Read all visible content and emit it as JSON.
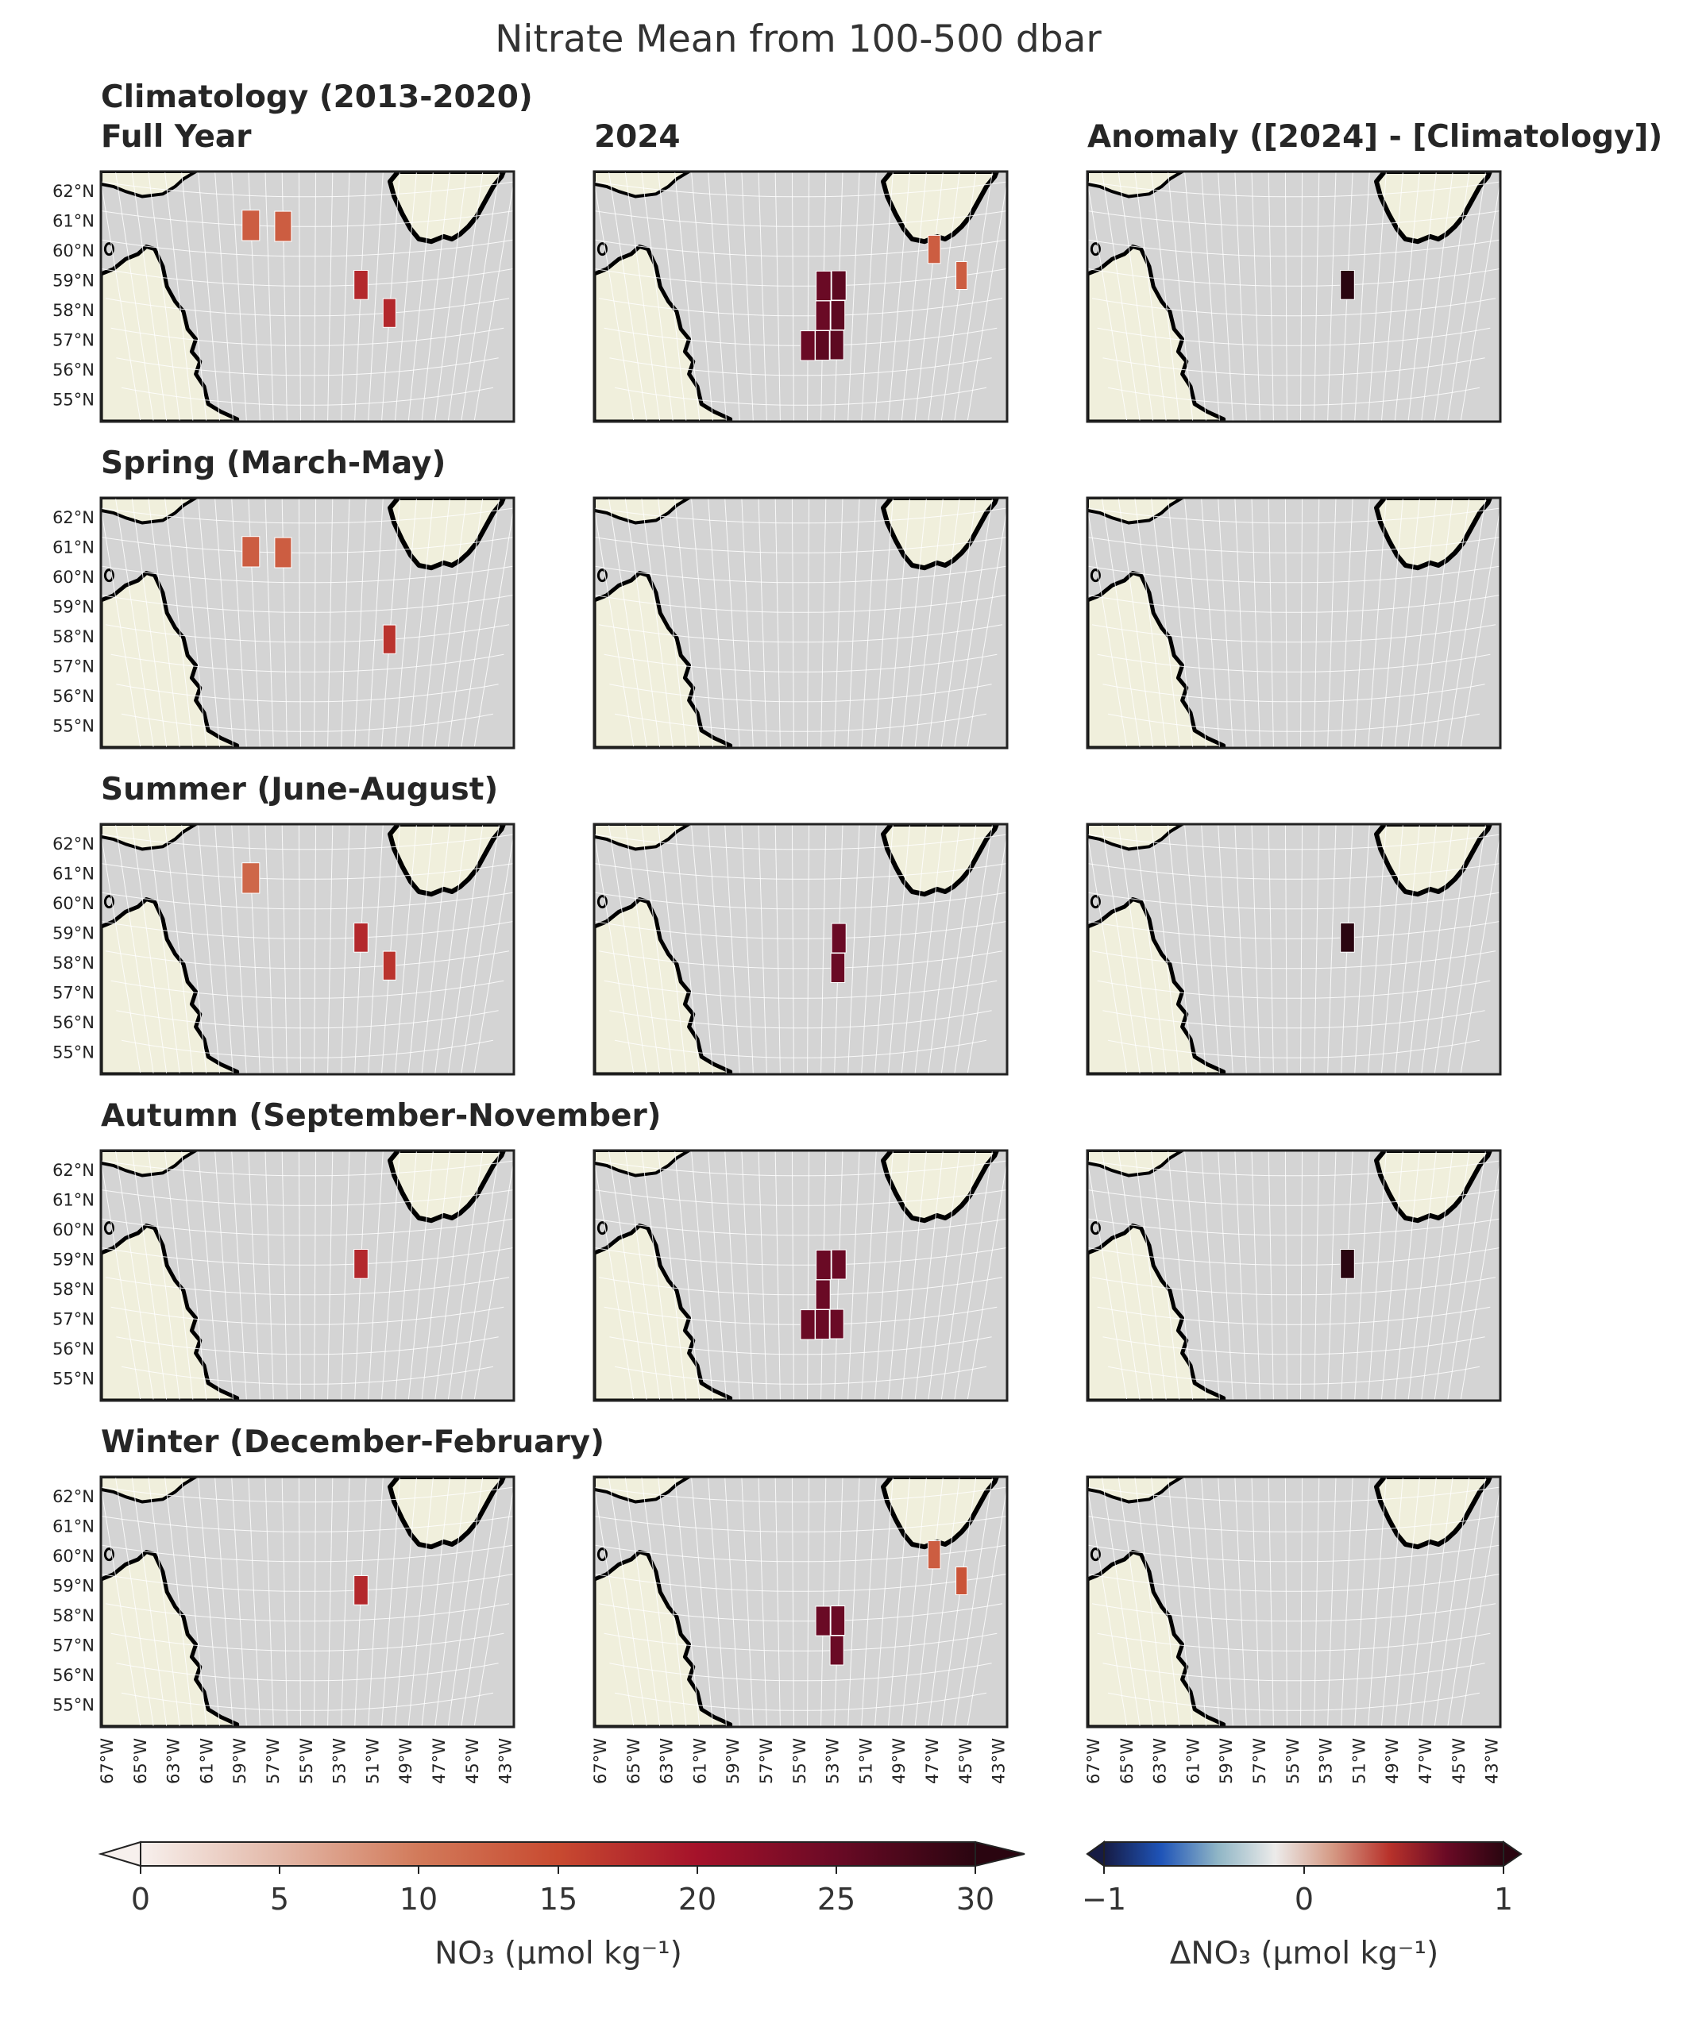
{
  "title": "Nitrate Mean from 100-500 dbar",
  "column_titles": {
    "climatology": "Climatology (2013-2020)",
    "year": "2024",
    "anomaly": "Anomaly ([2024] - [Climatology])"
  },
  "season_titles": [
    "Full Year",
    "Spring (March-May)",
    "Summer (June-August)",
    "Autumn (September-November)",
    "Winter (December-February)"
  ],
  "lat_ticks": [
    "62°N",
    "61°N",
    "60°N",
    "59°N",
    "58°N",
    "57°N",
    "56°N",
    "55°N"
  ],
  "lon_ticks": [
    "67°W",
    "65°W",
    "63°W",
    "61°W",
    "59°W",
    "57°W",
    "55°W",
    "53°W",
    "51°W",
    "49°W",
    "47°W",
    "45°W",
    "43°W"
  ],
  "colorbars": {
    "no3": {
      "ticks": [
        "0",
        "5",
        "10",
        "15",
        "20",
        "25",
        "30"
      ],
      "label": "NO₃ (μmol kg⁻¹)",
      "colors": [
        "#f7f0ed",
        "#e3b8a8",
        "#d27a5a",
        "#c84a30",
        "#a5122a",
        "#6a0a25",
        "#2a0510"
      ]
    },
    "anomaly": {
      "ticks": [
        "−1",
        "0",
        "1"
      ],
      "label": "ΔNO₃ (μmol kg⁻¹)",
      "colors": [
        "#161b44",
        "#1f54b8",
        "#90b6c6",
        "#ecebea",
        "#d59a85",
        "#b8322b",
        "#6a0a25",
        "#2a0510"
      ]
    }
  },
  "map_colors": {
    "ocean": "#d4d4d4",
    "land": "#f0efdc",
    "coast": "#000000",
    "grid": "#ffffff"
  },
  "chart_data": {
    "type": "heatmap",
    "title": "Nitrate Mean from 100-500 dbar",
    "xlabel": "",
    "ylabel": "",
    "xlim": [
      -67,
      -42
    ],
    "ylim": [
      54.5,
      62.5
    ],
    "cells": {
      "climatology": [
        [
          {
            "lon": -58,
            "lat": 61,
            "v": 13
          },
          {
            "lon": -56,
            "lat": 61,
            "v": 13
          },
          {
            "lon": -51,
            "lat": 59,
            "v": 18
          },
          {
            "lon": -49,
            "lat": 58,
            "v": 18
          }
        ],
        [
          {
            "lon": -58,
            "lat": 61,
            "v": 13
          },
          {
            "lon": -56,
            "lat": 61,
            "v": 13
          },
          {
            "lon": -49,
            "lat": 58,
            "v": 17
          }
        ],
        [
          {
            "lon": -58,
            "lat": 61,
            "v": 12
          },
          {
            "lon": -51,
            "lat": 59,
            "v": 18
          },
          {
            "lon": -49,
            "lat": 58,
            "v": 17
          }
        ],
        [
          {
            "lon": -51,
            "lat": 59,
            "v": 18
          }
        ],
        [
          {
            "lon": -51,
            "lat": 59,
            "v": 18
          }
        ]
      ],
      "year": [
        [
          {
            "lon": -53,
            "lat": 59,
            "v": 25
          },
          {
            "lon": -52,
            "lat": 59,
            "v": 26
          },
          {
            "lon": -53,
            "lat": 58,
            "v": 25
          },
          {
            "lon": -52,
            "lat": 58,
            "v": 26
          },
          {
            "lon": -54,
            "lat": 57,
            "v": 25
          },
          {
            "lon": -53,
            "lat": 57,
            "v": 26
          },
          {
            "lon": -52,
            "lat": 57,
            "v": 26
          },
          {
            "lon": -46,
            "lat": 60,
            "v": 13
          },
          {
            "lon": -44,
            "lat": 59,
            "v": 13
          }
        ],
        [],
        [
          {
            "lon": -52,
            "lat": 59,
            "v": 25
          },
          {
            "lon": -52,
            "lat": 58,
            "v": 25
          }
        ],
        [
          {
            "lon": -53,
            "lat": 59,
            "v": 25
          },
          {
            "lon": -52,
            "lat": 59,
            "v": 25
          },
          {
            "lon": -53,
            "lat": 58,
            "v": 25
          },
          {
            "lon": -54,
            "lat": 57,
            "v": 25
          },
          {
            "lon": -53,
            "lat": 57,
            "v": 25
          },
          {
            "lon": -52,
            "lat": 57,
            "v": 25
          }
        ],
        [
          {
            "lon": -53,
            "lat": 58,
            "v": 25
          },
          {
            "lon": -52,
            "lat": 58,
            "v": 25
          },
          {
            "lon": -52,
            "lat": 57,
            "v": 25
          },
          {
            "lon": -46,
            "lat": 60,
            "v": 13
          },
          {
            "lon": -44,
            "lat": 59,
            "v": 14
          }
        ]
      ],
      "anomaly": [
        [
          {
            "lon": -51,
            "lat": 59,
            "v": 1
          }
        ],
        [],
        [
          {
            "lon": -51,
            "lat": 59,
            "v": 1
          }
        ],
        [
          {
            "lon": -51,
            "lat": 59,
            "v": 1
          }
        ],
        []
      ]
    },
    "colorbar_ranges": {
      "no3": [
        0,
        30
      ],
      "anomaly": [
        -1,
        1
      ]
    }
  }
}
